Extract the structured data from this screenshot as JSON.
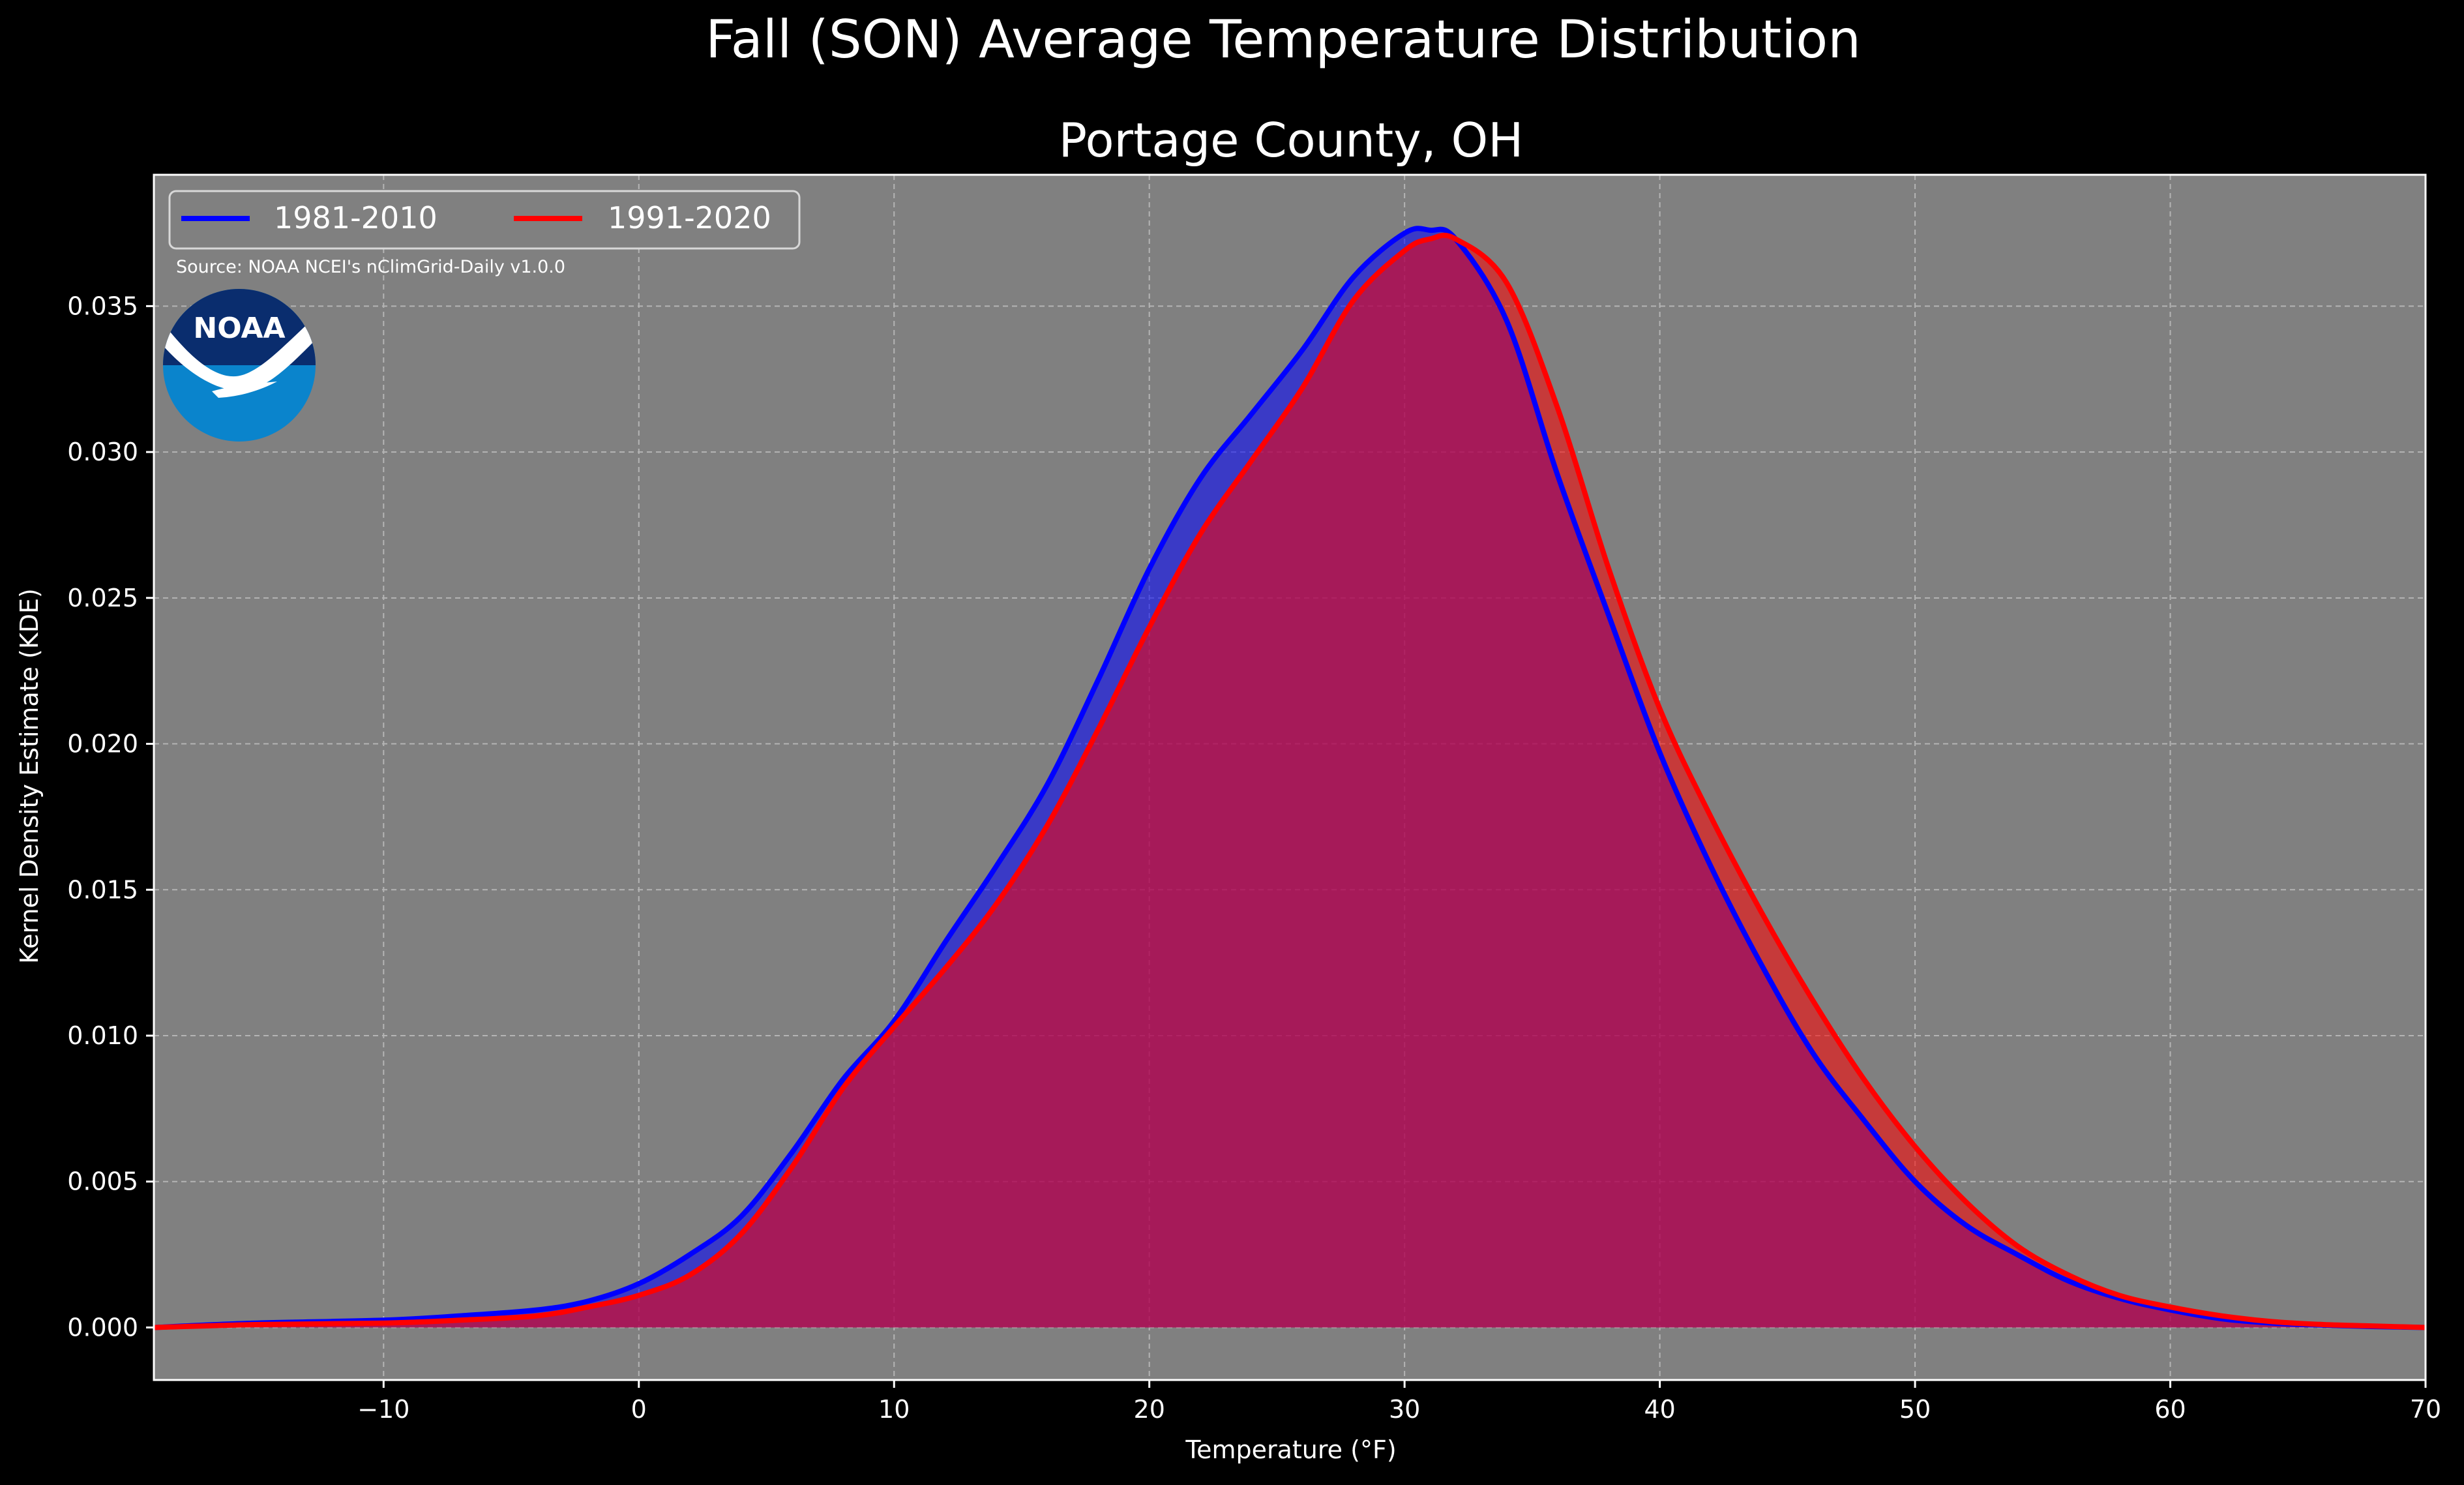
{
  "chart_data": {
    "type": "area",
    "title": "Fall (SON) Average Temperature Distribution",
    "subtitle": "Portage County, OH",
    "xlabel": "Temperature ($^\\circ$F)",
    "xlabel_display": "Temperature (°F)",
    "ylabel": "Kernel Density Estimate (KDE)",
    "xlim": [
      -19,
      70
    ],
    "ylim": [
      -0.0018,
      0.0395
    ],
    "x_ticks": [
      -10,
      0,
      10,
      20,
      30,
      40,
      50,
      60,
      70
    ],
    "x_tick_labels": [
      "−10",
      "0",
      "10",
      "20",
      "30",
      "40",
      "50",
      "60",
      "70"
    ],
    "y_ticks": [
      0.0,
      0.005,
      0.01,
      0.015,
      0.02,
      0.025,
      0.03,
      0.035
    ],
    "y_tick_labels": [
      "0.000",
      "0.005",
      "0.010",
      "0.015",
      "0.020",
      "0.025",
      "0.030",
      "0.035"
    ],
    "grid": true,
    "legend_placement": "top-left",
    "source_note": "Source: NOAA NCEI's nClimGrid-Daily v1.0.0",
    "logo_text": "NOAA",
    "series": [
      {
        "name": "1981-2010",
        "color": "#0000ff",
        "x": [
          -19,
          -15,
          -10,
          -7,
          -4,
          -2,
          0,
          2,
          4,
          6,
          8,
          10,
          12,
          14,
          16,
          18,
          20,
          22,
          24,
          26,
          28,
          30,
          31,
          32,
          34,
          36,
          38,
          40,
          42,
          44,
          46,
          48,
          50,
          52,
          54,
          56,
          58,
          60,
          62,
          64,
          66,
          68,
          70
        ],
        "y": [
          0.0,
          0.00015,
          0.00025,
          0.0004,
          0.0006,
          0.0009,
          0.0015,
          0.0025,
          0.0038,
          0.006,
          0.0085,
          0.0105,
          0.0132,
          0.0158,
          0.0186,
          0.0222,
          0.026,
          0.0291,
          0.0313,
          0.0335,
          0.036,
          0.0375,
          0.0376,
          0.0373,
          0.0345,
          0.0292,
          0.0244,
          0.0197,
          0.0158,
          0.0124,
          0.0094,
          0.0071,
          0.005,
          0.0035,
          0.0025,
          0.0016,
          0.001,
          0.0006,
          0.0003,
          0.00015,
          8e-05,
          3e-05,
          0.0
        ]
      },
      {
        "name": "1991-2020",
        "color": "#ff0000",
        "x": [
          -19,
          -15,
          -10,
          -7,
          -4,
          -2,
          0,
          2,
          4,
          6,
          8,
          10,
          12,
          14,
          16,
          18,
          20,
          22,
          24,
          26,
          28,
          30,
          31,
          32,
          34,
          36,
          38,
          40,
          42,
          44,
          46,
          48,
          50,
          52,
          54,
          56,
          58,
          60,
          62,
          64,
          66,
          68,
          70
        ],
        "y": [
          0.0,
          0.0001,
          0.00015,
          0.00025,
          0.0004,
          0.0007,
          0.0011,
          0.0018,
          0.0032,
          0.0055,
          0.0082,
          0.0103,
          0.0123,
          0.0145,
          0.0172,
          0.0205,
          0.024,
          0.0272,
          0.0297,
          0.0322,
          0.0352,
          0.0369,
          0.0373,
          0.0373,
          0.0358,
          0.0315,
          0.026,
          0.0212,
          0.0175,
          0.0142,
          0.0112,
          0.0085,
          0.0062,
          0.0043,
          0.0028,
          0.0018,
          0.0011,
          0.0007,
          0.0004,
          0.0002,
          0.0001,
          5e-05,
          0.0
        ]
      }
    ]
  }
}
